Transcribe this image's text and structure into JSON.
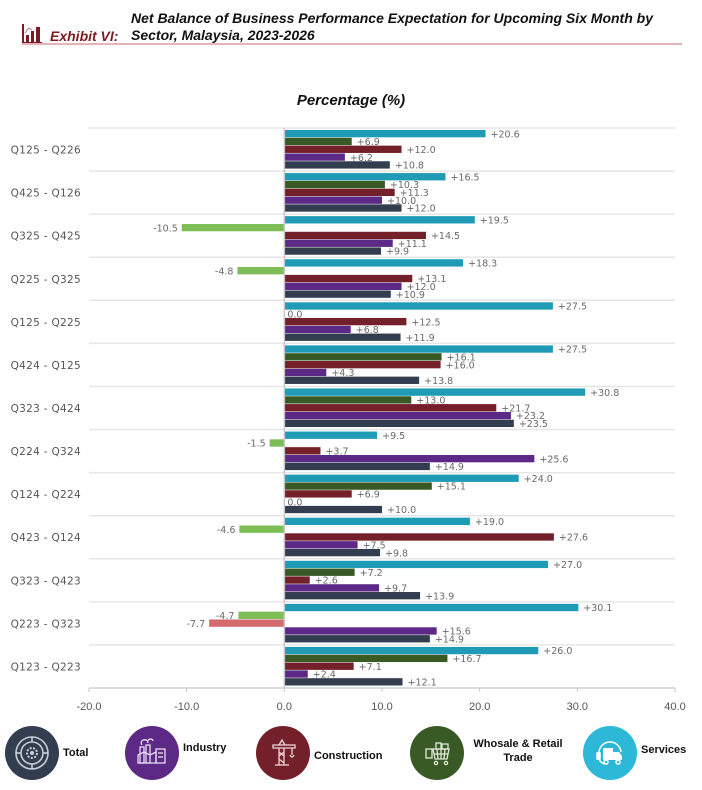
{
  "header": {
    "exhibit_label": "Exhibit  VI:",
    "title": "Net Balance of Business Performance Expectation for Upcoming Six Month by Sector, Malaysia, 2023-2026"
  },
  "colors": {
    "Services": "#1f9bb5",
    "Wholesale & Retail Trade": "#3a5a25",
    "Construction": "#74202a",
    "Industry": "#5c2a86",
    "Total": "#323d50",
    "negative_wholesale": "#7cbd56",
    "negative_construction": "#d46a6e",
    "accent": "#7b1c22"
  },
  "legend": [
    {
      "name": "Total",
      "label": "Total",
      "color": "#323d50",
      "icon": "gear-wheel-icon"
    },
    {
      "name": "Industry",
      "label": "Industry",
      "color": "#5c2a86",
      "icon": "factory-icon"
    },
    {
      "name": "Construction",
      "label": "Construction",
      "color": "#74202a",
      "icon": "crane-icon"
    },
    {
      "name": "Wholesale & Retail Trade",
      "label": "Whosale & Retail Trade",
      "color": "#3a5a25",
      "icon": "shopping-cart-icon"
    },
    {
      "name": "Services",
      "label": "Services",
      "color": "#2db8d8",
      "icon": "delivery-truck-headset-icon"
    }
  ],
  "chart_data": {
    "type": "bar",
    "orientation": "horizontal",
    "title": "Percentage (%)",
    "xlabel": "",
    "ylabel": "",
    "xlim": [
      -20,
      40
    ],
    "xticks": [
      "-20.0",
      "-10.0",
      "0.0",
      "10.0",
      "20.0",
      "30.0",
      "40.0"
    ],
    "grid": false,
    "legend_position": "bottom",
    "categories": [
      "Q125 - Q226",
      "Q425 - Q126",
      "Q325 - Q425",
      "Q225 - Q325",
      "Q125 - Q225",
      "Q424 - Q125",
      "Q323 - Q424",
      "Q224 - Q324",
      "Q124 - Q224",
      "Q423 - Q124",
      "Q323 - Q423",
      "Q223 - Q323",
      "Q123 - Q223"
    ],
    "series": [
      {
        "name": "Services",
        "values": [
          20.6,
          16.5,
          19.5,
          18.3,
          27.5,
          27.5,
          30.8,
          9.5,
          24.0,
          19.0,
          27.0,
          30.1,
          26.0
        ]
      },
      {
        "name": "Wholesale & Retail Trade",
        "values": [
          6.9,
          10.3,
          -10.5,
          -4.8,
          0.0,
          16.1,
          13.0,
          -1.5,
          15.1,
          -4.6,
          7.2,
          -4.7,
          16.7
        ]
      },
      {
        "name": "Construction",
        "values": [
          12.0,
          11.3,
          14.5,
          13.1,
          12.5,
          16.0,
          21.7,
          3.7,
          6.9,
          27.6,
          2.6,
          -7.7,
          7.1
        ]
      },
      {
        "name": "Industry",
        "values": [
          6.2,
          10.0,
          11.1,
          12.0,
          6.8,
          4.3,
          23.2,
          25.6,
          0.0,
          7.5,
          9.7,
          15.6,
          2.4
        ]
      },
      {
        "name": "Total",
        "values": [
          10.8,
          12.0,
          9.9,
          10.9,
          11.9,
          13.8,
          23.5,
          14.9,
          10.0,
          9.8,
          13.9,
          14.9,
          12.1
        ]
      }
    ]
  }
}
